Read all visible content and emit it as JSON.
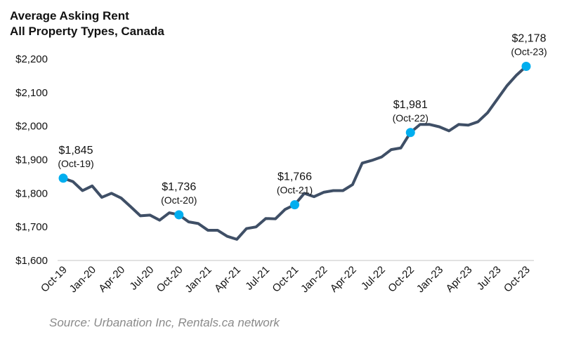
{
  "chart_data": {
    "type": "line",
    "title": [
      "Average Asking Rent",
      "All Property Types, Canada"
    ],
    "source": "Source: Urbanation Inc, Rentals.ca network",
    "x": [
      "Oct-19",
      "Nov-19",
      "Dec-19",
      "Jan-20",
      "Feb-20",
      "Mar-20",
      "Apr-20",
      "May-20",
      "Jun-20",
      "Jul-20",
      "Aug-20",
      "Sep-20",
      "Oct-20",
      "Nov-20",
      "Dec-20",
      "Jan-21",
      "Feb-21",
      "Mar-21",
      "Apr-21",
      "May-21",
      "Jun-21",
      "Jul-21",
      "Aug-21",
      "Sep-21",
      "Oct-21",
      "Nov-21",
      "Dec-21",
      "Jan-22",
      "Feb-22",
      "Mar-22",
      "Apr-22",
      "May-22",
      "Jun-22",
      "Jul-22",
      "Aug-22",
      "Sep-22",
      "Oct-22",
      "Nov-22",
      "Dec-22",
      "Jan-23",
      "Feb-23",
      "Mar-23",
      "Apr-23",
      "May-23",
      "Jun-23",
      "Jul-23",
      "Aug-23",
      "Sep-23",
      "Oct-23"
    ],
    "values": [
      1845,
      1835,
      1808,
      1822,
      1788,
      1800,
      1786,
      1760,
      1733,
      1735,
      1720,
      1742,
      1736,
      1715,
      1710,
      1690,
      1690,
      1672,
      1663,
      1695,
      1700,
      1725,
      1724,
      1752,
      1766,
      1800,
      1790,
      1803,
      1808,
      1808,
      1826,
      1890,
      1898,
      1908,
      1930,
      1935,
      1981,
      2005,
      2005,
      1998,
      1986,
      2005,
      2003,
      2013,
      2040,
      2080,
      2120,
      2152,
      2178
    ],
    "x_tick_labels": [
      "Oct-19",
      "Jan-20",
      "Apr-20",
      "Jul-20",
      "Oct-20",
      "Jan-21",
      "Apr-21",
      "Jul-21",
      "Oct-21",
      "Jan-22",
      "Apr-22",
      "Jul-22",
      "Oct-22",
      "Jan-23",
      "Apr-23",
      "Jul-23",
      "Oct-23"
    ],
    "y_tick_labels": [
      "$1,600",
      "$1,700",
      "$1,800",
      "$1,900",
      "$2,000",
      "$2,100",
      "$2,200"
    ],
    "y_ticks": [
      1600,
      1700,
      1800,
      1900,
      2000,
      2100,
      2200
    ],
    "ylim": [
      1600,
      2200
    ],
    "grid": false,
    "line_color": "#3f4f66",
    "marker_color": "#00aeef",
    "annotations": [
      {
        "x": "Oct-19",
        "value": "$1,845",
        "date": "(Oct-19)"
      },
      {
        "x": "Oct-20",
        "value": "$1,736",
        "date": "(Oct-20)"
      },
      {
        "x": "Oct-21",
        "value": "$1,766",
        "date": "(Oct-21)"
      },
      {
        "x": "Oct-22",
        "value": "$1,981",
        "date": "(Oct-22)"
      },
      {
        "x": "Oct-23",
        "value": "$2,178",
        "date": "(Oct-23)"
      }
    ]
  }
}
